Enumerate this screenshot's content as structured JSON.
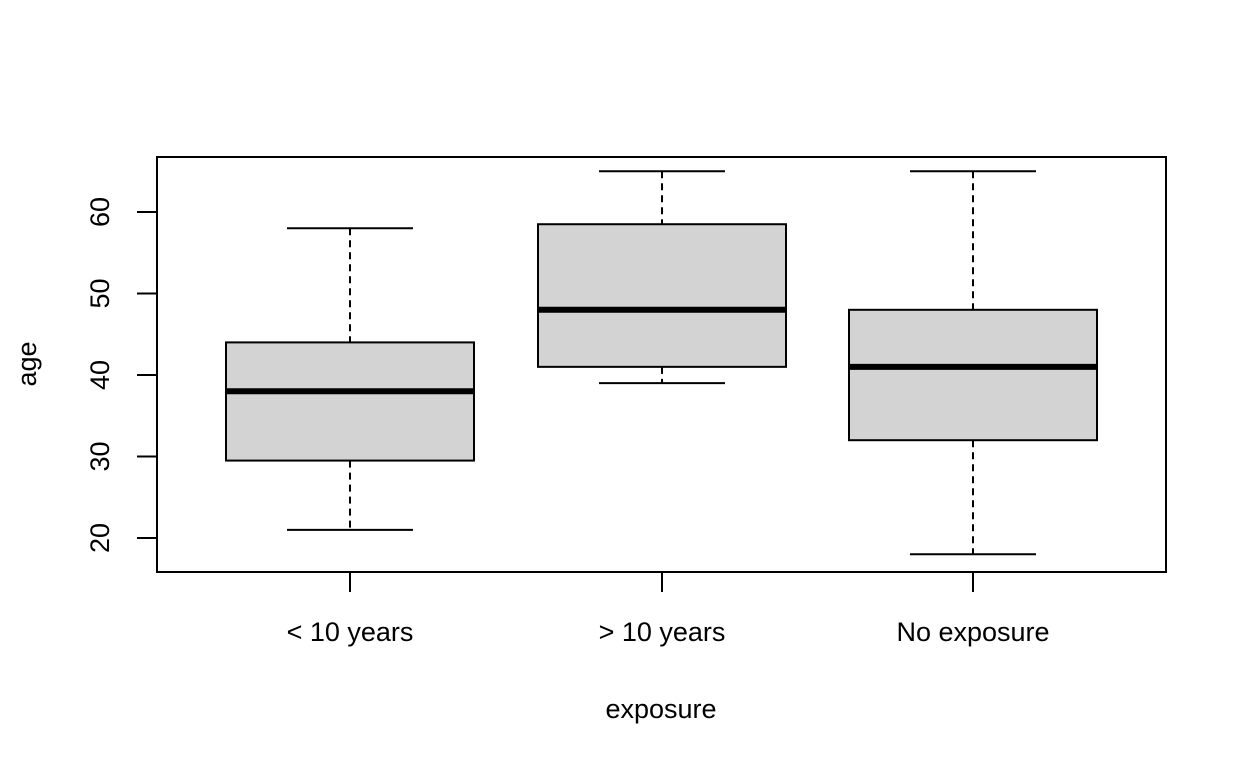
{
  "chart_data": {
    "type": "box",
    "title": "",
    "xlabel": "exposure",
    "ylabel": "age",
    "ylim": [
      16,
      67
    ],
    "y_ticks": [
      20,
      30,
      40,
      50,
      60
    ],
    "y_tick_labels": [
      "20",
      "30",
      "40",
      "50",
      "60"
    ],
    "categories": [
      "< 10 years",
      "> 10 years",
      "No exposure"
    ],
    "boxes": [
      {
        "category": "< 10 years",
        "min": 21,
        "q1": 29.5,
        "median": 38,
        "q3": 44,
        "max": 58
      },
      {
        "category": "> 10 years",
        "min": 39,
        "q1": 41,
        "median": 48,
        "q3": 58.5,
        "max": 65
      },
      {
        "category": "No exposure",
        "min": 18,
        "q1": 32,
        "median": 41,
        "q3": 48,
        "max": 65
      }
    ],
    "box_fill": "#d3d3d3",
    "line_color": "#000000",
    "grid": false,
    "legend": "none"
  }
}
